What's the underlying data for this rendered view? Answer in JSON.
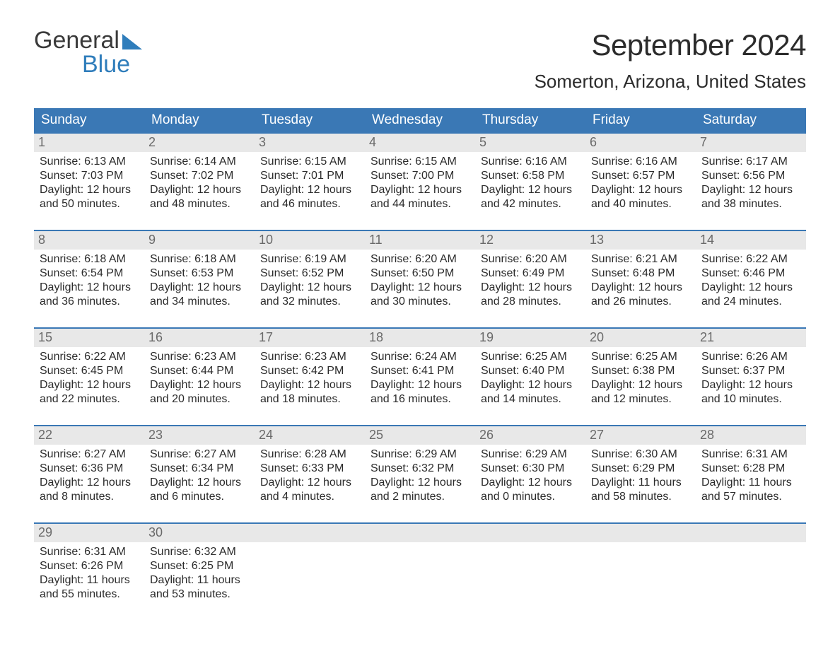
{
  "logo": {
    "line1": "General",
    "line2": "Blue"
  },
  "header": {
    "title": "September 2024",
    "location": "Somerton, Arizona, United States"
  },
  "labels": {
    "sunrise_prefix": "Sunrise: ",
    "sunset_prefix": "Sunset: ",
    "daylight_prefix": "Daylight: "
  },
  "colors": {
    "header_bg": "#3a78b5",
    "header_text": "#ffffff",
    "week_border": "#3a78b5",
    "daynum_bg": "#e8e8e8",
    "daynum_text": "#6a6a6a",
    "body_text": "#2b2b2b",
    "logo_accent": "#2f7dbb",
    "page_bg": "#ffffff"
  },
  "calendar": {
    "columns": [
      "Sunday",
      "Monday",
      "Tuesday",
      "Wednesday",
      "Thursday",
      "Friday",
      "Saturday"
    ],
    "weeks": [
      [
        {
          "n": "1",
          "sunrise": "6:13 AM",
          "sunset": "7:03 PM",
          "daylight": "12 hours and 50 minutes."
        },
        {
          "n": "2",
          "sunrise": "6:14 AM",
          "sunset": "7:02 PM",
          "daylight": "12 hours and 48 minutes."
        },
        {
          "n": "3",
          "sunrise": "6:15 AM",
          "sunset": "7:01 PM",
          "daylight": "12 hours and 46 minutes."
        },
        {
          "n": "4",
          "sunrise": "6:15 AM",
          "sunset": "7:00 PM",
          "daylight": "12 hours and 44 minutes."
        },
        {
          "n": "5",
          "sunrise": "6:16 AM",
          "sunset": "6:58 PM",
          "daylight": "12 hours and 42 minutes."
        },
        {
          "n": "6",
          "sunrise": "6:16 AM",
          "sunset": "6:57 PM",
          "daylight": "12 hours and 40 minutes."
        },
        {
          "n": "7",
          "sunrise": "6:17 AM",
          "sunset": "6:56 PM",
          "daylight": "12 hours and 38 minutes."
        }
      ],
      [
        {
          "n": "8",
          "sunrise": "6:18 AM",
          "sunset": "6:54 PM",
          "daylight": "12 hours and 36 minutes."
        },
        {
          "n": "9",
          "sunrise": "6:18 AM",
          "sunset": "6:53 PM",
          "daylight": "12 hours and 34 minutes."
        },
        {
          "n": "10",
          "sunrise": "6:19 AM",
          "sunset": "6:52 PM",
          "daylight": "12 hours and 32 minutes."
        },
        {
          "n": "11",
          "sunrise": "6:20 AM",
          "sunset": "6:50 PM",
          "daylight": "12 hours and 30 minutes."
        },
        {
          "n": "12",
          "sunrise": "6:20 AM",
          "sunset": "6:49 PM",
          "daylight": "12 hours and 28 minutes."
        },
        {
          "n": "13",
          "sunrise": "6:21 AM",
          "sunset": "6:48 PM",
          "daylight": "12 hours and 26 minutes."
        },
        {
          "n": "14",
          "sunrise": "6:22 AM",
          "sunset": "6:46 PM",
          "daylight": "12 hours and 24 minutes."
        }
      ],
      [
        {
          "n": "15",
          "sunrise": "6:22 AM",
          "sunset": "6:45 PM",
          "daylight": "12 hours and 22 minutes."
        },
        {
          "n": "16",
          "sunrise": "6:23 AM",
          "sunset": "6:44 PM",
          "daylight": "12 hours and 20 minutes."
        },
        {
          "n": "17",
          "sunrise": "6:23 AM",
          "sunset": "6:42 PM",
          "daylight": "12 hours and 18 minutes."
        },
        {
          "n": "18",
          "sunrise": "6:24 AM",
          "sunset": "6:41 PM",
          "daylight": "12 hours and 16 minutes."
        },
        {
          "n": "19",
          "sunrise": "6:25 AM",
          "sunset": "6:40 PM",
          "daylight": "12 hours and 14 minutes."
        },
        {
          "n": "20",
          "sunrise": "6:25 AM",
          "sunset": "6:38 PM",
          "daylight": "12 hours and 12 minutes."
        },
        {
          "n": "21",
          "sunrise": "6:26 AM",
          "sunset": "6:37 PM",
          "daylight": "12 hours and 10 minutes."
        }
      ],
      [
        {
          "n": "22",
          "sunrise": "6:27 AM",
          "sunset": "6:36 PM",
          "daylight": "12 hours and 8 minutes."
        },
        {
          "n": "23",
          "sunrise": "6:27 AM",
          "sunset": "6:34 PM",
          "daylight": "12 hours and 6 minutes."
        },
        {
          "n": "24",
          "sunrise": "6:28 AM",
          "sunset": "6:33 PM",
          "daylight": "12 hours and 4 minutes."
        },
        {
          "n": "25",
          "sunrise": "6:29 AM",
          "sunset": "6:32 PM",
          "daylight": "12 hours and 2 minutes."
        },
        {
          "n": "26",
          "sunrise": "6:29 AM",
          "sunset": "6:30 PM",
          "daylight": "12 hours and 0 minutes."
        },
        {
          "n": "27",
          "sunrise": "6:30 AM",
          "sunset": "6:29 PM",
          "daylight": "11 hours and 58 minutes."
        },
        {
          "n": "28",
          "sunrise": "6:31 AM",
          "sunset": "6:28 PM",
          "daylight": "11 hours and 57 minutes."
        }
      ],
      [
        {
          "n": "29",
          "sunrise": "6:31 AM",
          "sunset": "6:26 PM",
          "daylight": "11 hours and 55 minutes."
        },
        {
          "n": "30",
          "sunrise": "6:32 AM",
          "sunset": "6:25 PM",
          "daylight": "11 hours and 53 minutes."
        },
        {
          "empty": true
        },
        {
          "empty": true
        },
        {
          "empty": true
        },
        {
          "empty": true
        },
        {
          "empty": true
        }
      ]
    ]
  }
}
